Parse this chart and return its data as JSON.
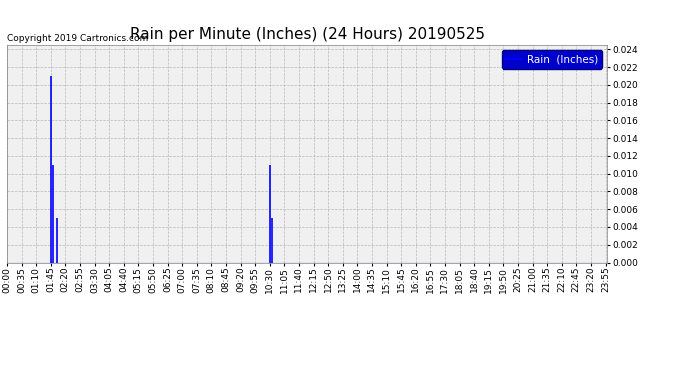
{
  "title": "Rain per Minute (Inches) (24 Hours) 20190525",
  "copyright_text": "Copyright 2019 Cartronics.com",
  "legend_label": "Rain  (Inches)",
  "legend_bg": "#0000CC",
  "legend_text_color": "#FFFFFF",
  "line_color": "#0000FF",
  "background_color": "#FFFFFF",
  "plot_bg_color": "#F0F0F0",
  "grid_color": "#AAAAAA",
  "ylim": [
    0.0,
    0.0245
  ],
  "yticks": [
    0.0,
    0.002,
    0.004,
    0.006,
    0.008,
    0.01,
    0.012,
    0.014,
    0.016,
    0.018,
    0.02,
    0.022,
    0.024
  ],
  "total_minutes": 1440,
  "spike_minutes": [
    105,
    110,
    120,
    630,
    635
  ],
  "spike_values": [
    0.021,
    0.011,
    0.005,
    0.011,
    0.005
  ],
  "xtick_interval": 35,
  "title_fontsize": 11,
  "axis_fontsize": 6.5,
  "copyright_fontsize": 6.5,
  "legend_fontsize": 7.5
}
